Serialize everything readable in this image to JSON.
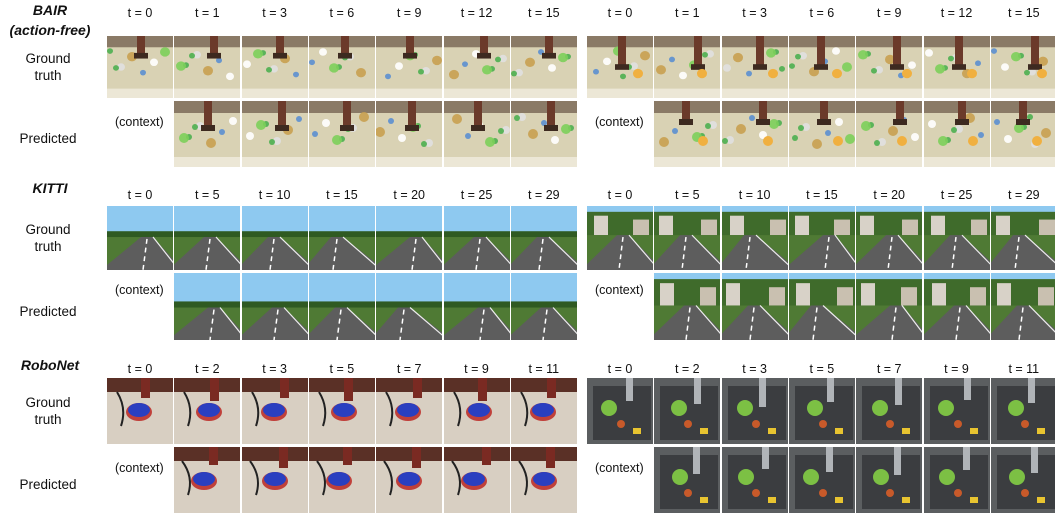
{
  "datasets": [
    {
      "name_line1": "BAIR",
      "name_line2": "(action-free)",
      "style": "bair",
      "timesteps": [
        "t = 0",
        "t = 1",
        "t = 3",
        "t = 6",
        "t = 9",
        "t = 12",
        "t = 15"
      ]
    },
    {
      "name_line1": "KITTI",
      "name_line2": "",
      "style": "kitti",
      "timesteps": [
        "t = 0",
        "t = 5",
        "t = 10",
        "t = 15",
        "t = 20",
        "t = 25",
        "t = 29"
      ]
    },
    {
      "name_line1": "RoboNet",
      "name_line2": "",
      "style": "robonet",
      "timesteps": [
        "t = 0",
        "t = 2",
        "t = 3",
        "t = 5",
        "t = 7",
        "t = 9",
        "t = 11"
      ]
    }
  ],
  "row_labels": {
    "ground_truth_line1": "Ground",
    "ground_truth_line2": "truth",
    "predicted": "Predicted"
  },
  "context_label": "(context)",
  "colors": {
    "bair_floor": "#d9d2b4",
    "bair_arm": "#6b3a2a",
    "kitti_sky": "#8ec9f0",
    "kitti_road": "#5d5d5d",
    "kitti_grass": "#4f7a34",
    "robonet_floor": "#d8cfc2",
    "robonet_bowl": "#2a3fc0",
    "robonet_tray": "#3b3d40"
  }
}
